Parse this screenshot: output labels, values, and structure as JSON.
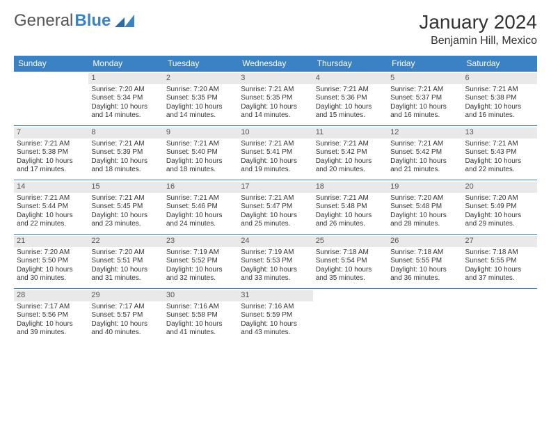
{
  "brand": {
    "part1": "General",
    "part2": "Blue"
  },
  "title": "January 2024",
  "location": "Benjamin Hill, Mexico",
  "colors": {
    "header_bg": "#3b82c4",
    "header_text": "#ffffff",
    "daynum_bg": "#e9e9e9",
    "row_border": "#3b82c4",
    "text": "#333333",
    "background": "#ffffff"
  },
  "type": "table",
  "dayHeaders": [
    "Sunday",
    "Monday",
    "Tuesday",
    "Wednesday",
    "Thursday",
    "Friday",
    "Saturday"
  ],
  "weeks": [
    [
      null,
      {
        "n": "1",
        "sr": "7:20 AM",
        "ss": "5:34 PM",
        "dl": "10 hours and 14 minutes."
      },
      {
        "n": "2",
        "sr": "7:20 AM",
        "ss": "5:35 PM",
        "dl": "10 hours and 14 minutes."
      },
      {
        "n": "3",
        "sr": "7:21 AM",
        "ss": "5:35 PM",
        "dl": "10 hours and 14 minutes."
      },
      {
        "n": "4",
        "sr": "7:21 AM",
        "ss": "5:36 PM",
        "dl": "10 hours and 15 minutes."
      },
      {
        "n": "5",
        "sr": "7:21 AM",
        "ss": "5:37 PM",
        "dl": "10 hours and 16 minutes."
      },
      {
        "n": "6",
        "sr": "7:21 AM",
        "ss": "5:38 PM",
        "dl": "10 hours and 16 minutes."
      }
    ],
    [
      {
        "n": "7",
        "sr": "7:21 AM",
        "ss": "5:38 PM",
        "dl": "10 hours and 17 minutes."
      },
      {
        "n": "8",
        "sr": "7:21 AM",
        "ss": "5:39 PM",
        "dl": "10 hours and 18 minutes."
      },
      {
        "n": "9",
        "sr": "7:21 AM",
        "ss": "5:40 PM",
        "dl": "10 hours and 18 minutes."
      },
      {
        "n": "10",
        "sr": "7:21 AM",
        "ss": "5:41 PM",
        "dl": "10 hours and 19 minutes."
      },
      {
        "n": "11",
        "sr": "7:21 AM",
        "ss": "5:42 PM",
        "dl": "10 hours and 20 minutes."
      },
      {
        "n": "12",
        "sr": "7:21 AM",
        "ss": "5:42 PM",
        "dl": "10 hours and 21 minutes."
      },
      {
        "n": "13",
        "sr": "7:21 AM",
        "ss": "5:43 PM",
        "dl": "10 hours and 22 minutes."
      }
    ],
    [
      {
        "n": "14",
        "sr": "7:21 AM",
        "ss": "5:44 PM",
        "dl": "10 hours and 22 minutes."
      },
      {
        "n": "15",
        "sr": "7:21 AM",
        "ss": "5:45 PM",
        "dl": "10 hours and 23 minutes."
      },
      {
        "n": "16",
        "sr": "7:21 AM",
        "ss": "5:46 PM",
        "dl": "10 hours and 24 minutes."
      },
      {
        "n": "17",
        "sr": "7:21 AM",
        "ss": "5:47 PM",
        "dl": "10 hours and 25 minutes."
      },
      {
        "n": "18",
        "sr": "7:21 AM",
        "ss": "5:48 PM",
        "dl": "10 hours and 26 minutes."
      },
      {
        "n": "19",
        "sr": "7:20 AM",
        "ss": "5:48 PM",
        "dl": "10 hours and 28 minutes."
      },
      {
        "n": "20",
        "sr": "7:20 AM",
        "ss": "5:49 PM",
        "dl": "10 hours and 29 minutes."
      }
    ],
    [
      {
        "n": "21",
        "sr": "7:20 AM",
        "ss": "5:50 PM",
        "dl": "10 hours and 30 minutes."
      },
      {
        "n": "22",
        "sr": "7:20 AM",
        "ss": "5:51 PM",
        "dl": "10 hours and 31 minutes."
      },
      {
        "n": "23",
        "sr": "7:19 AM",
        "ss": "5:52 PM",
        "dl": "10 hours and 32 minutes."
      },
      {
        "n": "24",
        "sr": "7:19 AM",
        "ss": "5:53 PM",
        "dl": "10 hours and 33 minutes."
      },
      {
        "n": "25",
        "sr": "7:18 AM",
        "ss": "5:54 PM",
        "dl": "10 hours and 35 minutes."
      },
      {
        "n": "26",
        "sr": "7:18 AM",
        "ss": "5:55 PM",
        "dl": "10 hours and 36 minutes."
      },
      {
        "n": "27",
        "sr": "7:18 AM",
        "ss": "5:55 PM",
        "dl": "10 hours and 37 minutes."
      }
    ],
    [
      {
        "n": "28",
        "sr": "7:17 AM",
        "ss": "5:56 PM",
        "dl": "10 hours and 39 minutes."
      },
      {
        "n": "29",
        "sr": "7:17 AM",
        "ss": "5:57 PM",
        "dl": "10 hours and 40 minutes."
      },
      {
        "n": "30",
        "sr": "7:16 AM",
        "ss": "5:58 PM",
        "dl": "10 hours and 41 minutes."
      },
      {
        "n": "31",
        "sr": "7:16 AM",
        "ss": "5:59 PM",
        "dl": "10 hours and 43 minutes."
      },
      null,
      null,
      null
    ]
  ],
  "labels": {
    "sunrise": "Sunrise:",
    "sunset": "Sunset:",
    "daylight": "Daylight:"
  }
}
